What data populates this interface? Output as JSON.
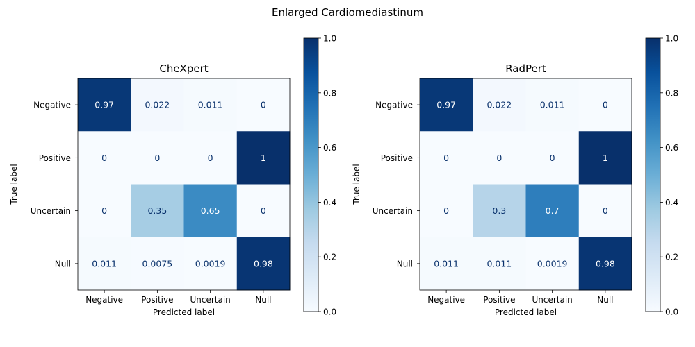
{
  "figure_title": "Enlarged Cardiomediastinum",
  "colormap": {
    "name": "Blues",
    "stops": [
      "#f7fbff",
      "#deebf7",
      "#c6dbef",
      "#9ecae1",
      "#6baed6",
      "#4292c6",
      "#2171b5",
      "#08519c",
      "#08306b"
    ]
  },
  "chart_data": [
    {
      "type": "heatmap",
      "title": "CheXpert",
      "xlabel": "Predicted label",
      "ylabel": "True label",
      "x_categories": [
        "Negative",
        "Positive",
        "Uncertain",
        "Null"
      ],
      "y_categories": [
        "Negative",
        "Positive",
        "Uncertain",
        "Null"
      ],
      "values": [
        [
          0.97,
          0.022,
          0.011,
          0
        ],
        [
          0,
          0,
          0,
          1
        ],
        [
          0,
          0.35,
          0.65,
          0
        ],
        [
          0.011,
          0.0075,
          0.0019,
          0.98
        ]
      ],
      "cell_labels": [
        [
          "0.97",
          "0.022",
          "0.011",
          "0"
        ],
        [
          "0",
          "0",
          "0",
          "1"
        ],
        [
          "0",
          "0.35",
          "0.65",
          "0"
        ],
        [
          "0.011",
          "0.0075",
          "0.0019",
          "0.98"
        ]
      ],
      "colorbar": {
        "range": [
          0.0,
          1.0
        ],
        "ticks": [
          0.0,
          0.2,
          0.4,
          0.6,
          0.8,
          1.0
        ],
        "tick_labels": [
          "0.0",
          "0.2",
          "0.4",
          "0.6",
          "0.8",
          "1.0"
        ]
      }
    },
    {
      "type": "heatmap",
      "title": "RadPert",
      "xlabel": "Predicted label",
      "ylabel": "True label",
      "x_categories": [
        "Negative",
        "Positive",
        "Uncertain",
        "Null"
      ],
      "y_categories": [
        "Negative",
        "Positive",
        "Uncertain",
        "Null"
      ],
      "values": [
        [
          0.97,
          0.022,
          0.011,
          0
        ],
        [
          0,
          0,
          0,
          1
        ],
        [
          0,
          0.3,
          0.7,
          0
        ],
        [
          0.011,
          0.011,
          0.0019,
          0.98
        ]
      ],
      "cell_labels": [
        [
          "0.97",
          "0.022",
          "0.011",
          "0"
        ],
        [
          "0",
          "0",
          "0",
          "1"
        ],
        [
          "0",
          "0.3",
          "0.7",
          "0"
        ],
        [
          "0.011",
          "0.011",
          "0.0019",
          "0.98"
        ]
      ],
      "colorbar": {
        "range": [
          0.0,
          1.0
        ],
        "ticks": [
          0.0,
          0.2,
          0.4,
          0.6,
          0.8,
          1.0
        ],
        "tick_labels": [
          "0.0",
          "0.2",
          "0.4",
          "0.6",
          "0.8",
          "1.0"
        ]
      }
    }
  ]
}
